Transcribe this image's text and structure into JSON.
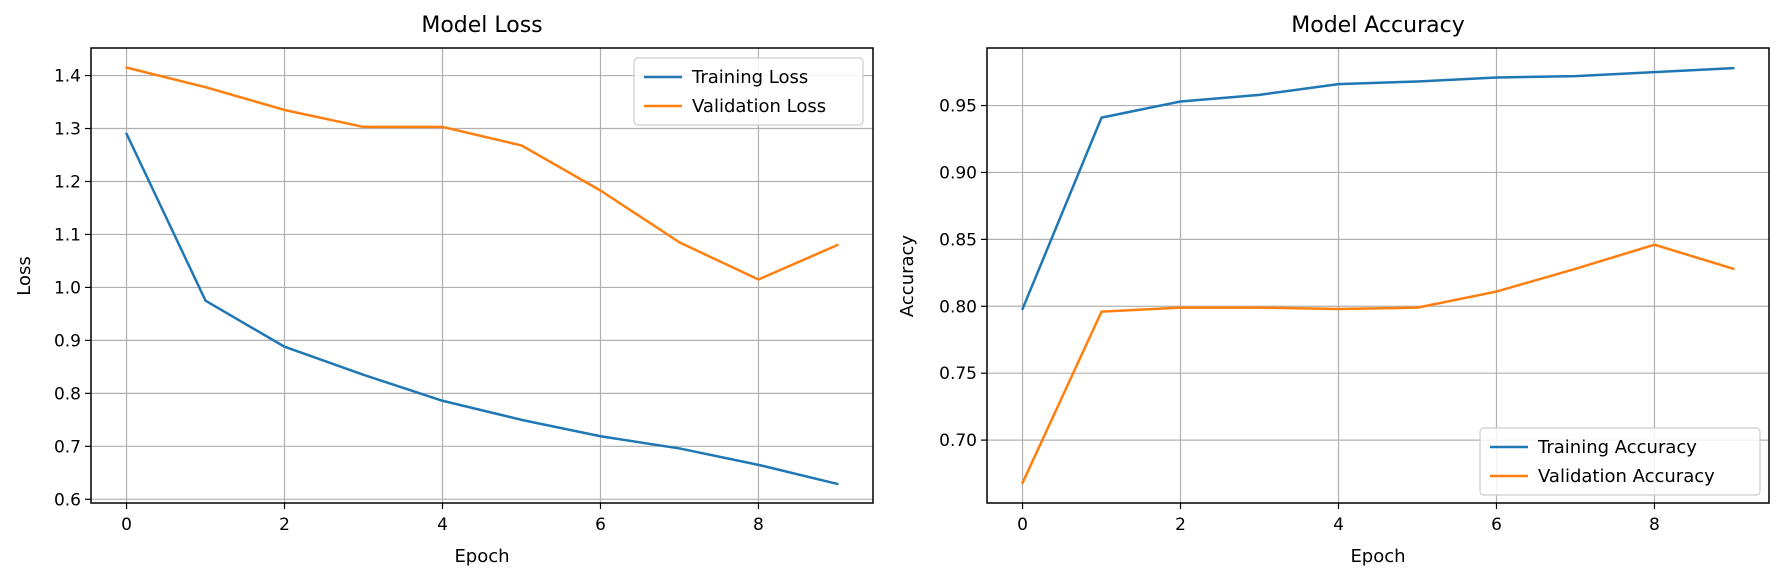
{
  "chart_data": [
    {
      "type": "line",
      "title": "Model Loss",
      "xlabel": "Epoch",
      "ylabel": "Loss",
      "x": [
        0,
        1,
        2,
        3,
        4,
        5,
        6,
        7,
        8,
        9
      ],
      "xlim": [
        -0.45,
        9.45
      ],
      "ylim": [
        0.593,
        1.452
      ],
      "xticks": [
        0,
        2,
        4,
        6,
        8
      ],
      "yticks": [
        0.6,
        0.7,
        0.8,
        0.9,
        1.0,
        1.1,
        1.2,
        1.3,
        1.4
      ],
      "yticklabels": [
        "0.6",
        "0.7",
        "0.8",
        "0.9",
        "1.0",
        "1.1",
        "1.2",
        "1.3",
        "1.4"
      ],
      "grid": true,
      "legend": "top-right",
      "series": [
        {
          "name": "Training Loss",
          "color": "#1f77b4",
          "values": [
            1.29,
            0.975,
            0.888,
            0.835,
            0.786,
            0.75,
            0.719,
            0.696,
            0.665,
            0.629
          ]
        },
        {
          "name": "Validation Loss",
          "color": "#ff7f0e",
          "values": [
            1.415,
            1.378,
            1.335,
            1.303,
            1.303,
            1.268,
            1.183,
            1.085,
            1.015,
            1.08
          ]
        }
      ]
    },
    {
      "type": "line",
      "title": "Model Accuracy",
      "xlabel": "Epoch",
      "ylabel": "Accuracy",
      "x": [
        0,
        1,
        2,
        3,
        4,
        5,
        6,
        7,
        8,
        9
      ],
      "xlim": [
        -0.45,
        9.45
      ],
      "ylim": [
        0.653,
        0.993
      ],
      "xticks": [
        0,
        2,
        4,
        6,
        8
      ],
      "yticks": [
        0.7,
        0.75,
        0.8,
        0.85,
        0.9,
        0.95
      ],
      "yticklabels": [
        "0.70",
        "0.75",
        "0.80",
        "0.85",
        "0.90",
        "0.95"
      ],
      "grid": true,
      "legend": "bottom-right",
      "series": [
        {
          "name": "Training Accuracy",
          "color": "#1f77b4",
          "values": [
            0.798,
            0.941,
            0.953,
            0.958,
            0.966,
            0.968,
            0.971,
            0.972,
            0.975,
            0.978
          ]
        },
        {
          "name": "Validation Accuracy",
          "color": "#ff7f0e",
          "values": [
            0.668,
            0.796,
            0.799,
            0.799,
            0.798,
            0.799,
            0.811,
            0.828,
            0.846,
            0.828
          ]
        }
      ]
    }
  ]
}
